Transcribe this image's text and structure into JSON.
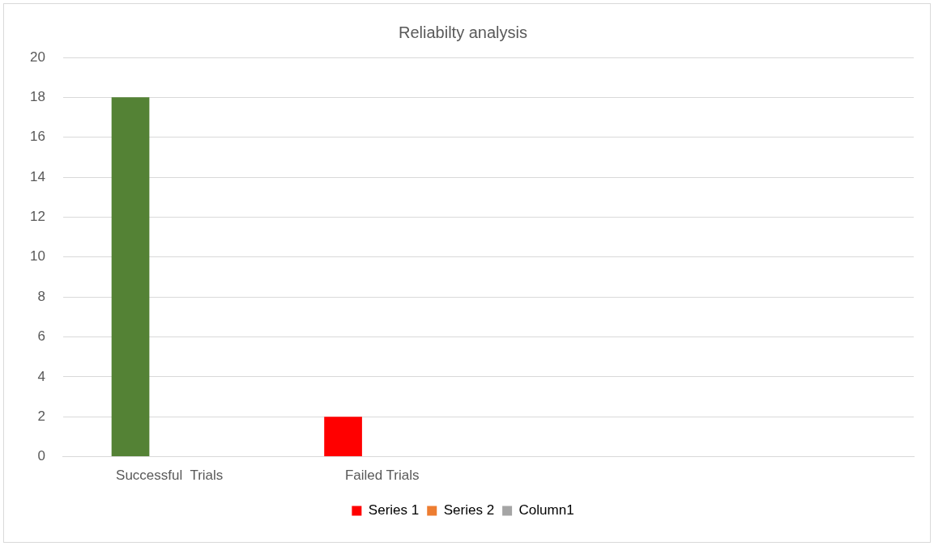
{
  "chart_data": {
    "type": "bar",
    "title": "Reliabilty analysis",
    "categories": [
      "Successful  Trials",
      "Failed Trials",
      null,
      null
    ],
    "series": [
      {
        "name": "Series 1",
        "color": "#ff0000",
        "colors": [
          "#548235",
          "#ff0000",
          null,
          null
        ],
        "values": [
          18,
          2,
          null,
          null
        ]
      },
      {
        "name": "Series 2",
        "color": "#ed7d31",
        "values": [
          null,
          null,
          null,
          null
        ]
      },
      {
        "name": "Column1",
        "color": "#a5a5a5",
        "values": [
          null,
          null,
          null,
          null
        ]
      }
    ],
    "ylim": [
      0,
      20
    ],
    "yticks": [
      0,
      2,
      4,
      6,
      8,
      10,
      12,
      14,
      16,
      18,
      20
    ],
    "grid": "y",
    "legend": "bottom"
  }
}
